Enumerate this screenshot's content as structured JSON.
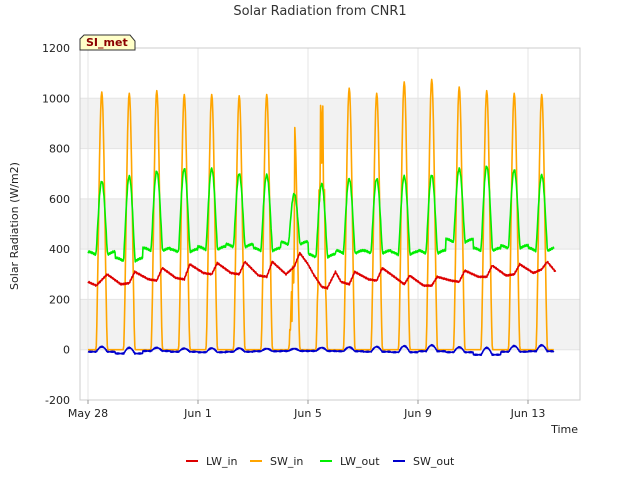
{
  "chart_data": {
    "type": "line",
    "title": "Solar Radiation from CNR1",
    "xlabel": "Time",
    "ylabel": "Solar Radiation (W/m2)",
    "badge": "SI_met",
    "xlim_days": [
      0,
      17.5
    ],
    "ylim": [
      -200,
      1200
    ],
    "y_ticks": [
      -200,
      0,
      200,
      400,
      600,
      800,
      1000,
      1200
    ],
    "x_ticks": [
      {
        "day": 0,
        "label": "May 28"
      },
      {
        "day": 4,
        "label": "Jun 1"
      },
      {
        "day": 8,
        "label": "Jun 5"
      },
      {
        "day": 12,
        "label": "Jun 9"
      },
      {
        "day": 16,
        "label": "Jun 13"
      }
    ],
    "grid": true,
    "banded_background": true,
    "legend_position": "bottom",
    "colors": {
      "LW_in": "#dd0000",
      "SW_in": "#ffa500",
      "LW_out": "#00ee00",
      "SW_out": "#0000cc"
    },
    "series": [
      {
        "name": "LW_in",
        "points": [
          [
            0.0,
            270
          ],
          [
            0.3,
            255
          ],
          [
            0.7,
            300
          ],
          [
            1.2,
            260
          ],
          [
            1.5,
            265
          ],
          [
            1.7,
            310
          ],
          [
            2.2,
            280
          ],
          [
            2.5,
            275
          ],
          [
            2.7,
            325
          ],
          [
            3.2,
            285
          ],
          [
            3.5,
            280
          ],
          [
            3.7,
            340
          ],
          [
            4.2,
            305
          ],
          [
            4.5,
            300
          ],
          [
            4.7,
            345
          ],
          [
            5.2,
            305
          ],
          [
            5.5,
            300
          ],
          [
            5.7,
            350
          ],
          [
            6.2,
            295
          ],
          [
            6.5,
            290
          ],
          [
            6.7,
            350
          ],
          [
            7.2,
            300
          ],
          [
            7.5,
            330
          ],
          [
            7.7,
            385
          ],
          [
            8.0,
            340
          ],
          [
            8.2,
            300
          ],
          [
            8.5,
            250
          ],
          [
            8.7,
            245
          ],
          [
            9.0,
            310
          ],
          [
            9.2,
            270
          ],
          [
            9.5,
            260
          ],
          [
            9.7,
            310
          ],
          [
            10.2,
            280
          ],
          [
            10.5,
            275
          ],
          [
            10.7,
            325
          ],
          [
            11.2,
            285
          ],
          [
            11.5,
            260
          ],
          [
            11.7,
            295
          ],
          [
            12.2,
            255
          ],
          [
            12.5,
            255
          ],
          [
            12.7,
            290
          ],
          [
            13.2,
            275
          ],
          [
            13.5,
            270
          ],
          [
            13.7,
            315
          ],
          [
            14.2,
            290
          ],
          [
            14.5,
            290
          ],
          [
            14.7,
            335
          ],
          [
            15.2,
            295
          ],
          [
            15.5,
            300
          ],
          [
            15.7,
            340
          ],
          [
            16.2,
            305
          ],
          [
            16.5,
            320
          ],
          [
            16.7,
            350
          ],
          [
            17.0,
            310
          ]
        ]
      },
      {
        "name": "SW_in",
        "peaks": [
          1025,
          1020,
          1030,
          1015,
          1015,
          1010,
          1015,
          900,
          1060,
          1040,
          1020,
          1065,
          1075,
          1045,
          1030,
          1020,
          1015
        ],
        "values_note_day_fraction": [
          0.29,
          0.71
        ]
      },
      {
        "name": "LW_out",
        "peaks": [
          670,
          690,
          710,
          720,
          720,
          700,
          695,
          620,
          660,
          680,
          680,
          690,
          695,
          720,
          730,
          715,
          695
        ],
        "night_levels": [
          380,
          355,
          395,
          390,
          400,
          410,
          395,
          420,
          370,
          385,
          385,
          380,
          385,
          430,
          395,
          405,
          395
        ]
      },
      {
        "name": "SW_out",
        "peaks": [
          12,
          8,
          8,
          5,
          6,
          6,
          4,
          4,
          8,
          10,
          12,
          15,
          18,
          10,
          8,
          15,
          18
        ],
        "night_levels": [
          -8,
          -15,
          -5,
          -8,
          -10,
          -8,
          -6,
          -5,
          -5,
          -6,
          -8,
          -10,
          -6,
          -10,
          -20,
          -8,
          -6
        ]
      }
    ]
  }
}
